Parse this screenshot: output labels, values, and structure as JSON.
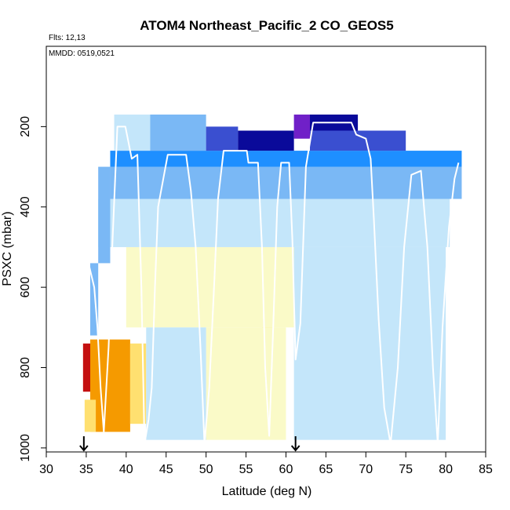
{
  "chart_data": {
    "type": "heatmap",
    "title": "ATOM4 Northeast_Pacific_2 CO_GEOS5",
    "annotations": {
      "flights": "Flts: 12,13",
      "dates": "MMDD: 0519,0521"
    },
    "xlabel": "Latitude (deg N)",
    "ylabel": "PSXC (mbar)",
    "xlim": [
      30,
      85
    ],
    "ylim": [
      1010,
      0
    ],
    "y_reversed": true,
    "grid": false,
    "x_ticks": [
      30,
      35,
      40,
      45,
      50,
      55,
      60,
      65,
      70,
      75,
      80,
      85
    ],
    "y_ticks": [
      200,
      400,
      600,
      800,
      1000
    ],
    "x_tick_labels": [
      "30",
      "35",
      "40",
      "45",
      "50",
      "55",
      "60",
      "65",
      "70",
      "75",
      "80",
      "85"
    ],
    "y_tick_labels": [
      "200",
      "400",
      "600",
      "800",
      "1000"
    ],
    "markers": [
      {
        "name": "arrow-start",
        "x": 34.7
      },
      {
        "name": "arrow-end",
        "x": 61.2
      }
    ],
    "colors": {
      "very_high": "#c41010",
      "high": "#f59a00",
      "mid_high": "#ffe070",
      "mid": "#fafac8",
      "mid_low": "#c4e6fa",
      "low": "#7ab8f5",
      "lower": "#1e8fff",
      "very_low": "#3a4fd0",
      "lowest": "#0a0a9a",
      "min": "#7020c8",
      "flight_path": "#ffffff"
    },
    "cells": [
      {
        "x0": 34.6,
        "x1": 35.5,
        "p0": 740,
        "p1": 860,
        "c": "very_high"
      },
      {
        "x0": 35.5,
        "x1": 40.5,
        "p0": 730,
        "p1": 960,
        "c": "high"
      },
      {
        "x0": 34.8,
        "x1": 36.2,
        "p0": 880,
        "p1": 960,
        "c": "mid_high"
      },
      {
        "x0": 40.5,
        "x1": 42.5,
        "p0": 740,
        "p1": 940,
        "c": "mid_high"
      },
      {
        "x0": 57.0,
        "x1": 58.5,
        "p0": 640,
        "p1": 720,
        "c": "mid_high"
      },
      {
        "x0": 40.0,
        "x1": 61.0,
        "p0": 500,
        "p1": 700,
        "c": "mid"
      },
      {
        "x0": 50.0,
        "x1": 60.0,
        "p0": 700,
        "p1": 980,
        "c": "mid"
      },
      {
        "x0": 42.5,
        "x1": 50.0,
        "p0": 700,
        "p1": 980,
        "c": "mid_low"
      },
      {
        "x0": 61.0,
        "x1": 80.0,
        "p0": 500,
        "p1": 980,
        "c": "mid_low"
      },
      {
        "x0": 36.5,
        "x1": 80.5,
        "p0": 380,
        "p1": 500,
        "c": "mid_low"
      },
      {
        "x0": 35.5,
        "x1": 36.5,
        "p0": 540,
        "p1": 720,
        "c": "low"
      },
      {
        "x0": 36.5,
        "x1": 38.0,
        "p0": 300,
        "p1": 540,
        "c": "low"
      },
      {
        "x0": 38.0,
        "x1": 82.0,
        "p0": 300,
        "p1": 380,
        "c": "low"
      },
      {
        "x0": 38.0,
        "x1": 82.0,
        "p0": 260,
        "p1": 300,
        "c": "lower"
      },
      {
        "x0": 38.5,
        "x1": 43.0,
        "p0": 170,
        "p1": 260,
        "c": "mid_low"
      },
      {
        "x0": 43.0,
        "x1": 50.0,
        "p0": 170,
        "p1": 260,
        "c": "low"
      },
      {
        "x0": 50.0,
        "x1": 54.0,
        "p0": 200,
        "p1": 260,
        "c": "very_low"
      },
      {
        "x0": 54.0,
        "x1": 61.0,
        "p0": 210,
        "p1": 260,
        "c": "lowest"
      },
      {
        "x0": 61.0,
        "x1": 63.0,
        "p0": 170,
        "p1": 230,
        "c": "min"
      },
      {
        "x0": 63.0,
        "x1": 69.0,
        "p0": 170,
        "p1": 210,
        "c": "lowest"
      },
      {
        "x0": 63.0,
        "x1": 75.0,
        "p0": 210,
        "p1": 260,
        "c": "very_low"
      }
    ],
    "flight_path": [
      [
        34.9,
        560
      ],
      [
        35.4,
        550
      ],
      [
        36.0,
        600
      ],
      [
        36.4,
        700
      ],
      [
        36.8,
        850
      ],
      [
        37.2,
        960
      ],
      [
        37.8,
        750
      ],
      [
        38.3,
        480
      ],
      [
        38.9,
        200
      ],
      [
        39.9,
        200
      ],
      [
        40.7,
        280
      ],
      [
        41.4,
        270
      ],
      [
        41.9,
        600
      ],
      [
        42.3,
        990
      ],
      [
        42.8,
        930
      ],
      [
        43.2,
        850
      ],
      [
        43.6,
        600
      ],
      [
        44.0,
        400
      ],
      [
        45.2,
        270
      ],
      [
        47.5,
        270
      ],
      [
        48.1,
        360
      ],
      [
        48.7,
        500
      ],
      [
        49.3,
        750
      ],
      [
        49.8,
        990
      ],
      [
        50.4,
        850
      ],
      [
        51.0,
        600
      ],
      [
        51.5,
        380
      ],
      [
        52.2,
        260
      ],
      [
        55.1,
        260
      ],
      [
        55.3,
        290
      ],
      [
        56.5,
        290
      ],
      [
        57.0,
        500
      ],
      [
        57.4,
        800
      ],
      [
        57.9,
        970
      ],
      [
        58.4,
        700
      ],
      [
        58.9,
        400
      ],
      [
        59.4,
        290
      ],
      [
        60.4,
        290
      ],
      [
        60.8,
        480
      ],
      [
        61.2,
        780
      ],
      [
        61.8,
        690
      ],
      [
        62.5,
        300
      ],
      [
        63.4,
        190
      ],
      [
        68.2,
        190
      ],
      [
        68.8,
        220
      ],
      [
        70.0,
        230
      ],
      [
        70.6,
        280
      ],
      [
        71.0,
        430
      ],
      [
        71.6,
        680
      ],
      [
        72.3,
        900
      ],
      [
        73.1,
        990
      ],
      [
        74.0,
        800
      ],
      [
        74.8,
        500
      ],
      [
        75.7,
        320
      ],
      [
        76.9,
        310
      ],
      [
        77.7,
        500
      ],
      [
        78.4,
        800
      ],
      [
        79.0,
        990
      ],
      [
        79.6,
        700
      ],
      [
        80.4,
        450
      ],
      [
        81.1,
        330
      ],
      [
        81.6,
        290
      ]
    ]
  }
}
